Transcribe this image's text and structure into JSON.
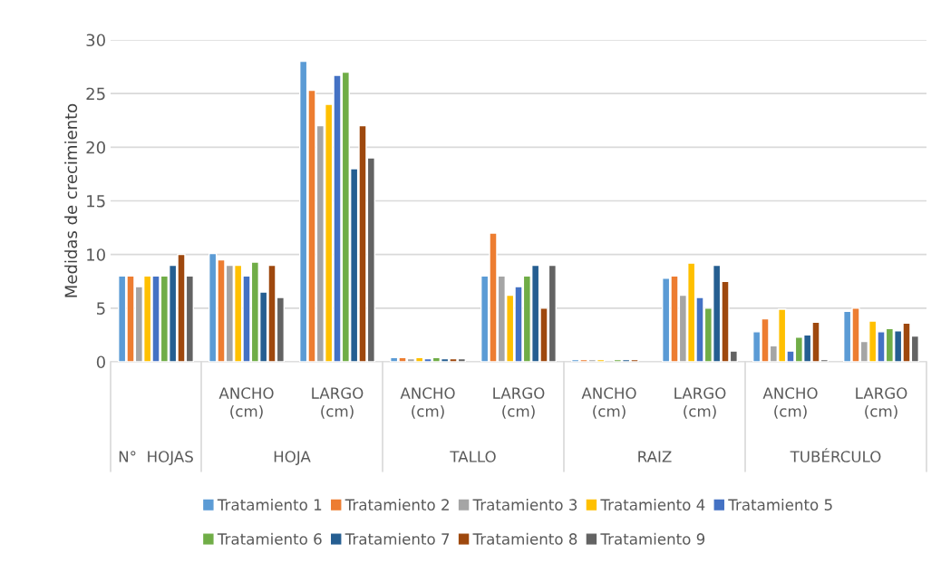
{
  "chart_data": {
    "type": "bar",
    "ylabel": "Medidas de crecimiento",
    "categories": [
      null,
      "ANCHO (cm)",
      "LARGO (cm)",
      "ANCHO (cm)",
      "LARGO (cm)",
      "ANCHO (cm)",
      "LARGO (cm)",
      "ANCHO (cm)",
      "LARGO (cm)"
    ],
    "annotations": [
      "N°  HOJAS",
      "HOJA",
      "TALLO",
      "RAIZ",
      "TUBÉRCULO"
    ],
    "series": [
      {
        "name": "Tratamiento 1",
        "color": "#5b9bd5",
        "values": [
          8,
          10.1,
          28,
          0.4,
          8,
          0.2,
          7.8,
          2.8,
          4.7
        ]
      },
      {
        "name": "Tratamiento 2",
        "color": "#ed7d31",
        "values": [
          8,
          9.5,
          25.3,
          0.4,
          12,
          0.2,
          8,
          4,
          5
        ]
      },
      {
        "name": "Tratamiento 3",
        "color": "#a5a5a5",
        "values": [
          7,
          9,
          22,
          0.3,
          8,
          0.2,
          6.2,
          1.5,
          1.9
        ]
      },
      {
        "name": "Tratamiento 4",
        "color": "#ffc000",
        "values": [
          8,
          9,
          24,
          0.4,
          6.2,
          0.2,
          9.2,
          4.9,
          3.8
        ]
      },
      {
        "name": "Tratamiento 5",
        "color": "#4472c4",
        "values": [
          8,
          8,
          26.7,
          0.3,
          7,
          null,
          6,
          1,
          2.8
        ]
      },
      {
        "name": "Tratamiento 6",
        "color": "#70ad47",
        "values": [
          8,
          9.3,
          27,
          0.4,
          8,
          0.2,
          5,
          2.3,
          3.1
        ]
      },
      {
        "name": "Tratamiento 7",
        "color": "#255e91",
        "values": [
          9,
          6.5,
          18,
          0.3,
          9,
          0.2,
          9,
          2.5,
          2.9
        ]
      },
      {
        "name": "Tratamiento 8",
        "color": "#9e480e",
        "values": [
          10,
          9,
          22,
          0.3,
          5,
          0.2,
          7.5,
          3.7,
          3.6
        ]
      },
      {
        "name": "Tratamiento 9",
        "color": "#636363",
        "values": [
          8,
          6,
          19,
          0.3,
          9,
          null,
          1,
          0.2,
          2.4
        ]
      }
    ],
    "ylim": [
      0,
      30
    ],
    "yticks": [
      0,
      5,
      10,
      15,
      20,
      25,
      30
    ],
    "grid": "y",
    "legend": "bottom"
  }
}
